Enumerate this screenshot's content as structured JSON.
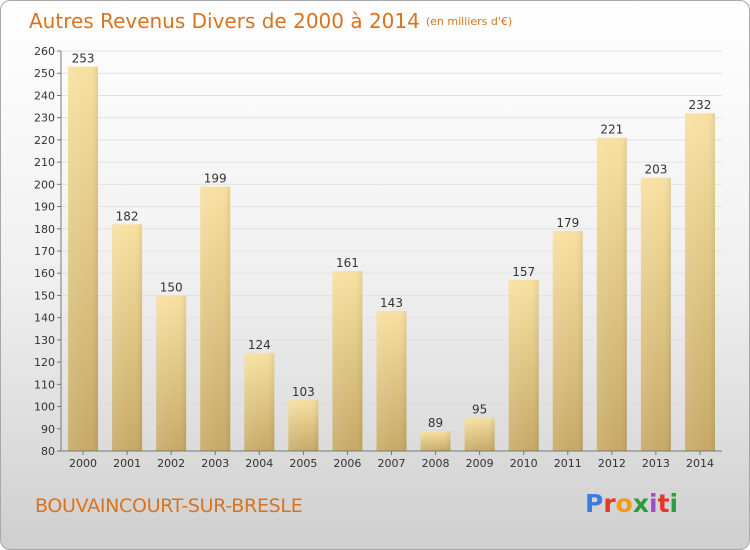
{
  "title": {
    "main": "Autres Revenus Divers de 2000 à 2014",
    "sub": "(en milliers d'€)"
  },
  "footer": {
    "commune": "BOUVAINCOURT-SUR-BRESLE",
    "brand": "Proxiti",
    "brand_colors": [
      "#3b7dd8",
      "#e03a2a",
      "#f39a16",
      "#2d9c3c",
      "#9b4fc0",
      "#e03a2a",
      "#2d9c3c"
    ]
  },
  "colors": {
    "title": "#d9731c",
    "bar_light": "#f7e0a0",
    "bar_dark": "#c6a966"
  },
  "chart_data": {
    "type": "bar",
    "categories": [
      "2000",
      "2001",
      "2002",
      "2003",
      "2004",
      "2005",
      "2006",
      "2007",
      "2008",
      "2009",
      "2010",
      "2011",
      "2012",
      "2013",
      "2014"
    ],
    "values": [
      253,
      182,
      150,
      199,
      124,
      103,
      161,
      143,
      89,
      95,
      157,
      179,
      221,
      203,
      232
    ],
    "data_labels": [
      "253",
      "182",
      "150",
      "199",
      "124",
      "103",
      "161",
      "143",
      "89",
      "95",
      "157",
      "179",
      "221",
      "203",
      "232"
    ],
    "yticks": [
      "80",
      "90",
      "100",
      "110",
      "120",
      "130",
      "140",
      "150",
      "160",
      "170",
      "180",
      "190",
      "200",
      "210",
      "220",
      "230",
      "240",
      "250",
      "260"
    ],
    "ylim": [
      80,
      260
    ],
    "grid": true,
    "legend": "none"
  }
}
